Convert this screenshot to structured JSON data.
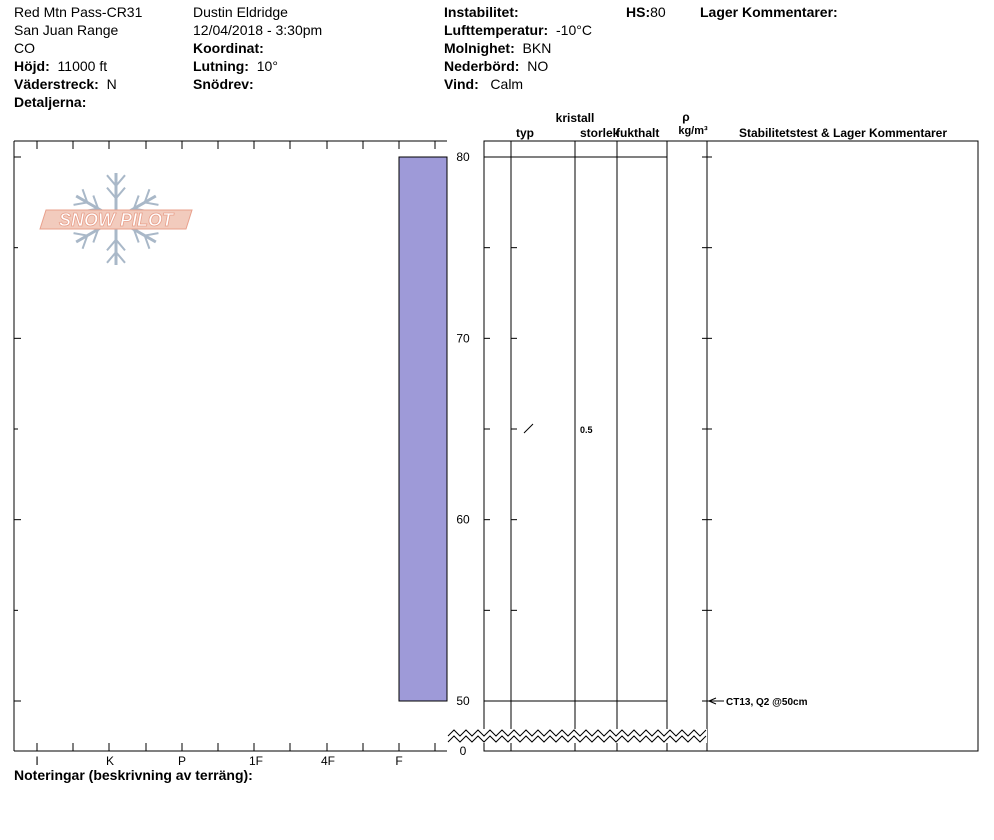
{
  "header": {
    "location": "Red Mtn Pass-CR31",
    "range": "San Juan Range",
    "state": "CO",
    "elevation_label": "Höjd:",
    "elevation": "11000 ft",
    "aspect_label": "Väderstreck:",
    "aspect": "N",
    "details_label": "Detaljerna:",
    "observer": "Dustin Eldridge",
    "datetime": "12/04/2018 - 3:30pm",
    "coordinate_label": "Koordinat:",
    "slope_label": "Lutning:",
    "slope": "10°",
    "drift_label": "Snödrev:",
    "instability_label": "Instabilitet:",
    "air_temp_label": "Lufttemperatur:",
    "air_temp": "-10°C",
    "cloud_label": "Molnighet:",
    "cloud": "BKN",
    "precip_label": "Nederbörd:",
    "precip": "NO",
    "wind_label": "Vind:",
    "wind": "Calm",
    "hs_label": "HS:",
    "hs": "80",
    "layer_comments_label": "Lager Kommentarer:"
  },
  "logo_text": "SNOW PILOT",
  "columns": {
    "crystal": "kristall",
    "type": "typ",
    "size": "storlek",
    "moisture": "fukthalt",
    "rho": "ρ",
    "density_unit": "kg/m³",
    "comments": "Stabilitetstest & Lager Kommentarer"
  },
  "footer": {
    "notes_label": "Noteringar (beskrivning av terräng):"
  },
  "chart_data": {
    "type": "bar",
    "hardness_scale": [
      "I",
      "K",
      "P",
      "1F",
      "4F",
      "F"
    ],
    "depth_ticks": [
      80,
      70,
      60,
      50,
      0
    ],
    "depth_range": [
      50,
      80
    ],
    "axis_break_below": 50,
    "layers": [
      {
        "top": 80,
        "bottom": 50,
        "hardness": "F",
        "color": "#9e9ad8"
      }
    ],
    "layer_boundaries": [
      80,
      50
    ],
    "grain_observations": [
      {
        "depth": 65,
        "symbol": "/",
        "size": "0.5"
      }
    ],
    "stability_tests": [
      {
        "depth": 50,
        "label": "CT13, Q2 @50cm"
      }
    ]
  },
  "colors": {
    "layer_fill": "#9e9ad8",
    "logo_red": "#e8a08c",
    "logo_blue": "#a9b8c8"
  }
}
